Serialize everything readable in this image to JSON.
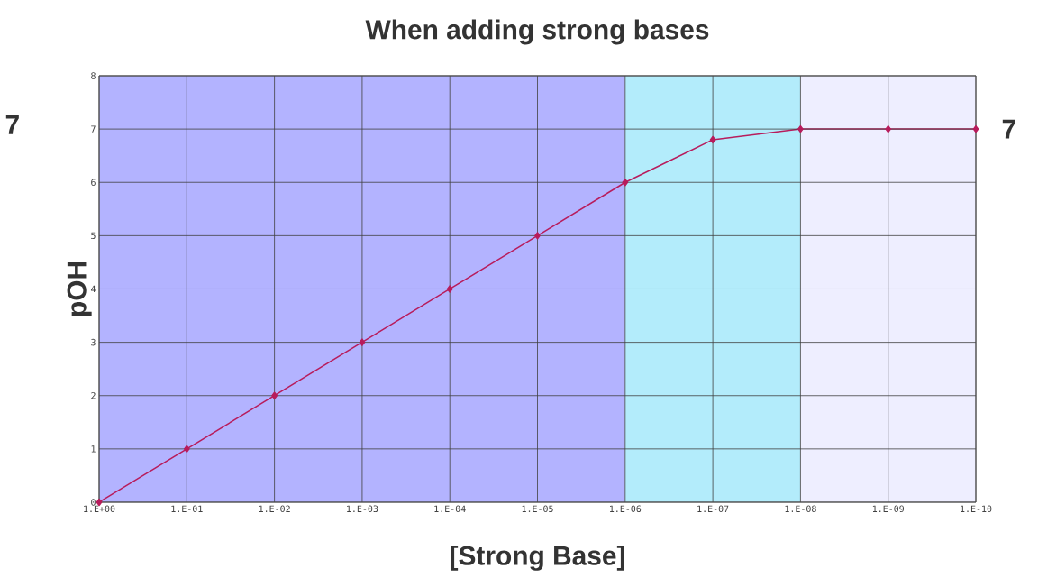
{
  "chart_data": {
    "type": "line",
    "title": "When adding strong bases",
    "xlabel": "[Strong Base]",
    "ylabel": "pOH",
    "categories": [
      "1.E+00",
      "1.E-01",
      "1.E-02",
      "1.E-03",
      "1.E-04",
      "1.E-05",
      "1.E-06",
      "1.E-07",
      "1.E-08",
      "1.E-09",
      "1.E-10"
    ],
    "values": [
      0,
      1,
      2,
      3,
      4,
      5,
      6,
      6.8,
      7,
      7,
      7
    ],
    "color": "#b81c5c",
    "marker": "diamond",
    "line_style": "solid",
    "ylim": [
      0,
      8
    ],
    "yticks": [
      0,
      1,
      2,
      3,
      4,
      5,
      6,
      7,
      8
    ],
    "grid": true,
    "bands": [
      {
        "axis": "x",
        "from": "1.E+00",
        "to": "1.E-06",
        "color": "#b3b3ff"
      },
      {
        "axis": "x",
        "from": "1.E-06",
        "to": "1.E-08",
        "color": "#b3ecfb"
      },
      {
        "axis": "x",
        "from": "1.E-08",
        "to": "1.E-10",
        "color": "#eeeeff"
      }
    ],
    "annotations": [
      "7",
      {
        "text": "7",
        "x": "1.E-10",
        "y": 7
      }
    ]
  }
}
